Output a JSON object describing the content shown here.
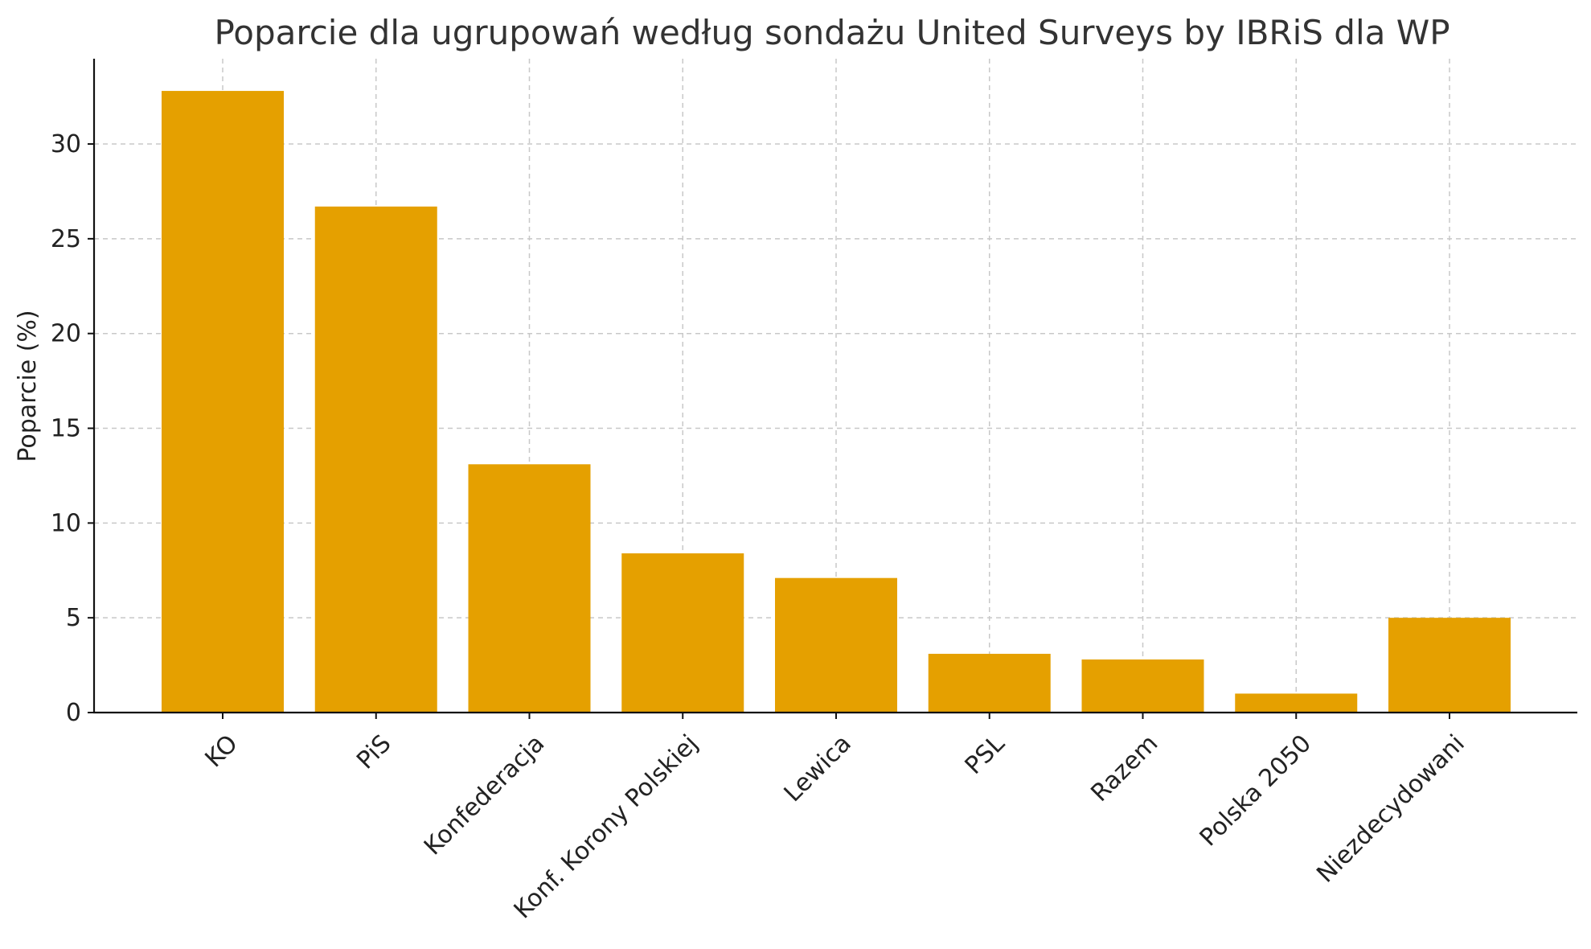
{
  "chart_data": {
    "type": "bar",
    "title": "Poparcie dla ugrupowań według sondażu United Surveys by IBRiS dla WP",
    "xlabel": "",
    "ylabel": "Poparcie (%)",
    "categories": [
      "KO",
      "PiS",
      "Konfederacja",
      "Konf. Korony Polskiej",
      "Lewica",
      "PSL",
      "Razem",
      "Polska 2050",
      "Niezdecydowani"
    ],
    "values": [
      32.8,
      26.7,
      13.1,
      8.4,
      7.1,
      3.1,
      2.8,
      1.0,
      5.0
    ],
    "ylim": [
      0,
      34.5
    ],
    "yticks": [
      0,
      5,
      10,
      15,
      20,
      25,
      30
    ],
    "bar_color": "#e5a000",
    "grid": true,
    "legend": "none"
  }
}
